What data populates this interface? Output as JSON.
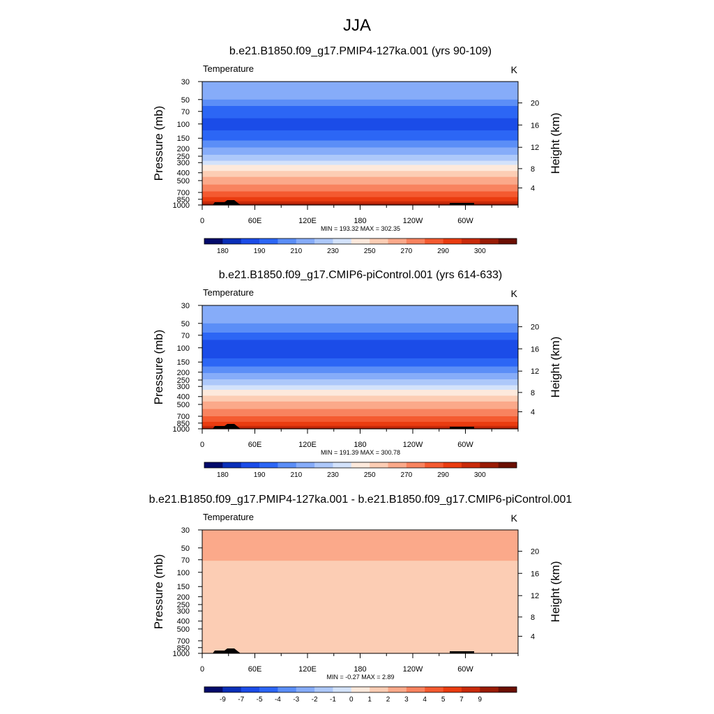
{
  "main_title": "JJA",
  "chart_data": [
    {
      "type": "heatmap",
      "title": "b.e21.B1850.f09_g17.PMIP4-127ka.001 (yrs 90-109)",
      "left_label": "Temperature",
      "unit_label": "K",
      "ylabel": "Pressure (mb)",
      "ylabel_right": "Height (km)",
      "x_ticks": [
        "0",
        "60E",
        "120E",
        "180",
        "120W",
        "60W"
      ],
      "y_ticks": [
        "30",
        "50",
        "70",
        "100",
        "150",
        "200",
        "250",
        "300",
        "400",
        "500",
        "700",
        "850",
        "1000"
      ],
      "height_ticks": [
        "4",
        "8",
        "12",
        "16",
        "20"
      ],
      "stats": "MIN = 193.32  MAX = 302.35",
      "colorbar_labels": [
        "180",
        "190",
        "210",
        "230",
        "250",
        "270",
        "290",
        "300"
      ],
      "colorbar_colors": [
        "#030a6a",
        "#0a2fb8",
        "#1b4ce8",
        "#2c66f5",
        "#5b8ef7",
        "#86acf9",
        "#adc8fa",
        "#d3e2fb",
        "#fde9dc",
        "#fccdb4",
        "#fba98a",
        "#f8835f",
        "#f45a30",
        "#ea3c10",
        "#c92a0a",
        "#9a1b05",
        "#6b0f02"
      ],
      "bands": [
        {
          "p_top": 30,
          "p_bottom": 50,
          "color": "#86acf9"
        },
        {
          "p_top": 50,
          "p_bottom": 60,
          "color": "#5b8ef7"
        },
        {
          "p_top": 60,
          "p_bottom": 85,
          "color": "#2c66f5"
        },
        {
          "p_top": 85,
          "p_bottom": 120,
          "color": "#1b4ce8"
        },
        {
          "p_top": 120,
          "p_bottom": 160,
          "color": "#2c66f5"
        },
        {
          "p_top": 160,
          "p_bottom": 195,
          "color": "#5b8ef7"
        },
        {
          "p_top": 195,
          "p_bottom": 240,
          "color": "#86acf9"
        },
        {
          "p_top": 240,
          "p_bottom": 285,
          "color": "#adc8fa"
        },
        {
          "p_top": 285,
          "p_bottom": 320,
          "color": "#d3e2fb"
        },
        {
          "p_top": 320,
          "p_bottom": 380,
          "color": "#fde9dc"
        },
        {
          "p_top": 380,
          "p_bottom": 450,
          "color": "#fccdb4"
        },
        {
          "p_top": 450,
          "p_bottom": 560,
          "color": "#fba98a"
        },
        {
          "p_top": 560,
          "p_bottom": 680,
          "color": "#f8835f"
        },
        {
          "p_top": 680,
          "p_bottom": 800,
          "color": "#f45a30"
        },
        {
          "p_top": 800,
          "p_bottom": 900,
          "color": "#ea3c10"
        },
        {
          "p_top": 900,
          "p_bottom": 960,
          "color": "#c92a0a"
        },
        {
          "p_top": 960,
          "p_bottom": 1000,
          "color": "#9a1b05"
        }
      ]
    },
    {
      "type": "heatmap",
      "title": "b.e21.B1850.f09_g17.CMIP6-piControl.001 (yrs 614-633)",
      "left_label": "Temperature",
      "unit_label": "K",
      "ylabel": "Pressure (mb)",
      "ylabel_right": "Height (km)",
      "x_ticks": [
        "0",
        "60E",
        "120E",
        "180",
        "120W",
        "60W"
      ],
      "y_ticks": [
        "30",
        "50",
        "70",
        "100",
        "150",
        "200",
        "250",
        "300",
        "400",
        "500",
        "700",
        "850",
        "1000"
      ],
      "height_ticks": [
        "4",
        "8",
        "12",
        "16",
        "20"
      ],
      "stats": "MIN = 191.39  MAX = 300.78",
      "colorbar_labels": [
        "180",
        "190",
        "210",
        "230",
        "250",
        "270",
        "290",
        "300"
      ],
      "colorbar_colors": [
        "#030a6a",
        "#0a2fb8",
        "#1b4ce8",
        "#2c66f5",
        "#5b8ef7",
        "#86acf9",
        "#adc8fa",
        "#d3e2fb",
        "#fde9dc",
        "#fccdb4",
        "#fba98a",
        "#f8835f",
        "#f45a30",
        "#ea3c10",
        "#c92a0a",
        "#9a1b05",
        "#6b0f02"
      ],
      "bands": [
        {
          "p_top": 30,
          "p_bottom": 50,
          "color": "#86acf9"
        },
        {
          "p_top": 50,
          "p_bottom": 65,
          "color": "#5b8ef7"
        },
        {
          "p_top": 65,
          "p_bottom": 80,
          "color": "#2c66f5"
        },
        {
          "p_top": 80,
          "p_bottom": 135,
          "color": "#1b4ce8"
        },
        {
          "p_top": 135,
          "p_bottom": 170,
          "color": "#2c66f5"
        },
        {
          "p_top": 170,
          "p_bottom": 205,
          "color": "#5b8ef7"
        },
        {
          "p_top": 205,
          "p_bottom": 245,
          "color": "#86acf9"
        },
        {
          "p_top": 245,
          "p_bottom": 290,
          "color": "#adc8fa"
        },
        {
          "p_top": 290,
          "p_bottom": 330,
          "color": "#d3e2fb"
        },
        {
          "p_top": 330,
          "p_bottom": 390,
          "color": "#fde9dc"
        },
        {
          "p_top": 390,
          "p_bottom": 460,
          "color": "#fccdb4"
        },
        {
          "p_top": 460,
          "p_bottom": 570,
          "color": "#fba98a"
        },
        {
          "p_top": 570,
          "p_bottom": 700,
          "color": "#f8835f"
        },
        {
          "p_top": 700,
          "p_bottom": 820,
          "color": "#f45a30"
        },
        {
          "p_top": 820,
          "p_bottom": 920,
          "color": "#ea3c10"
        },
        {
          "p_top": 920,
          "p_bottom": 970,
          "color": "#c92a0a"
        },
        {
          "p_top": 970,
          "p_bottom": 1000,
          "color": "#9a1b05"
        }
      ]
    },
    {
      "type": "heatmap",
      "title": "b.e21.B1850.f09_g17.PMIP4-127ka.001 - b.e21.B1850.f09_g17.CMIP6-piControl.001",
      "left_label": "Temperature",
      "unit_label": "K",
      "ylabel": "Pressure (mb)",
      "ylabel_right": "Height (km)",
      "x_ticks": [
        "0",
        "60E",
        "120E",
        "180",
        "120W",
        "60W"
      ],
      "y_ticks": [
        "30",
        "50",
        "70",
        "100",
        "150",
        "200",
        "250",
        "300",
        "400",
        "500",
        "700",
        "850",
        "1000"
      ],
      "height_ticks": [
        "4",
        "8",
        "12",
        "16",
        "20"
      ],
      "stats": "MIN =  -0.27  MAX =   2.89",
      "colorbar_labels": [
        "-9",
        "-7",
        "-5",
        "-4",
        "-3",
        "-2",
        "-1",
        "0",
        "1",
        "2",
        "3",
        "4",
        "5",
        "7",
        "9"
      ],
      "colorbar_colors": [
        "#030a6a",
        "#0a2fb8",
        "#1b4ce8",
        "#2c66f5",
        "#5b8ef7",
        "#86acf9",
        "#adc8fa",
        "#d3e2fb",
        "#fde9dc",
        "#fccdb4",
        "#fba98a",
        "#f8835f",
        "#f45a30",
        "#ea3c10",
        "#c92a0a",
        "#9a1b05",
        "#6b0f02"
      ],
      "bands": [
        {
          "p_top": 30,
          "p_bottom": 72,
          "color": "#fba98a"
        },
        {
          "p_top": 72,
          "p_bottom": 1000,
          "color": "#fccdb4"
        }
      ]
    }
  ]
}
